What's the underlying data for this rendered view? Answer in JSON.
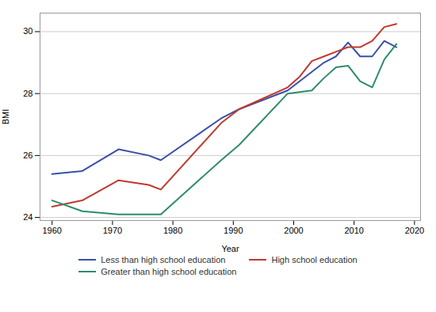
{
  "chart_data": {
    "type": "line",
    "xlabel": "Year",
    "ylabel": "BMI",
    "x": [
      1960,
      1965,
      1971,
      1976,
      1978,
      1988,
      1991,
      1999,
      2001,
      2003,
      2005,
      2007,
      2009,
      2011,
      2013,
      2015,
      2017
    ],
    "series": [
      {
        "name": "Less than high school education",
        "color": "#3a4fa8",
        "values": [
          25.4,
          25.5,
          26.2,
          26.0,
          25.85,
          27.2,
          27.5,
          28.1,
          28.4,
          28.7,
          29.0,
          29.2,
          29.65,
          29.2,
          29.2,
          29.7,
          29.5
        ]
      },
      {
        "name": "High school education",
        "color": "#c0392b",
        "values": [
          24.35,
          24.55,
          25.2,
          25.05,
          24.9,
          27.05,
          27.5,
          28.2,
          28.55,
          29.05,
          29.2,
          29.35,
          29.5,
          29.5,
          29.7,
          30.15,
          30.25
        ]
      },
      {
        "name": "Greater than high school education",
        "color": "#2e8b6e",
        "values": [
          24.55,
          24.2,
          24.1,
          24.1,
          24.1,
          25.85,
          26.35,
          28.0,
          28.05,
          28.1,
          28.5,
          28.85,
          28.9,
          28.4,
          28.2,
          29.1,
          29.6
        ]
      }
    ],
    "xlim": [
      1958,
      2021
    ],
    "ylim": [
      23.9,
      30.6
    ],
    "xticks": [
      1960,
      1970,
      1980,
      1990,
      2000,
      2010,
      2020
    ],
    "yticks": [
      24,
      26,
      28,
      30
    ],
    "grid": true,
    "legend": "bottom"
  }
}
